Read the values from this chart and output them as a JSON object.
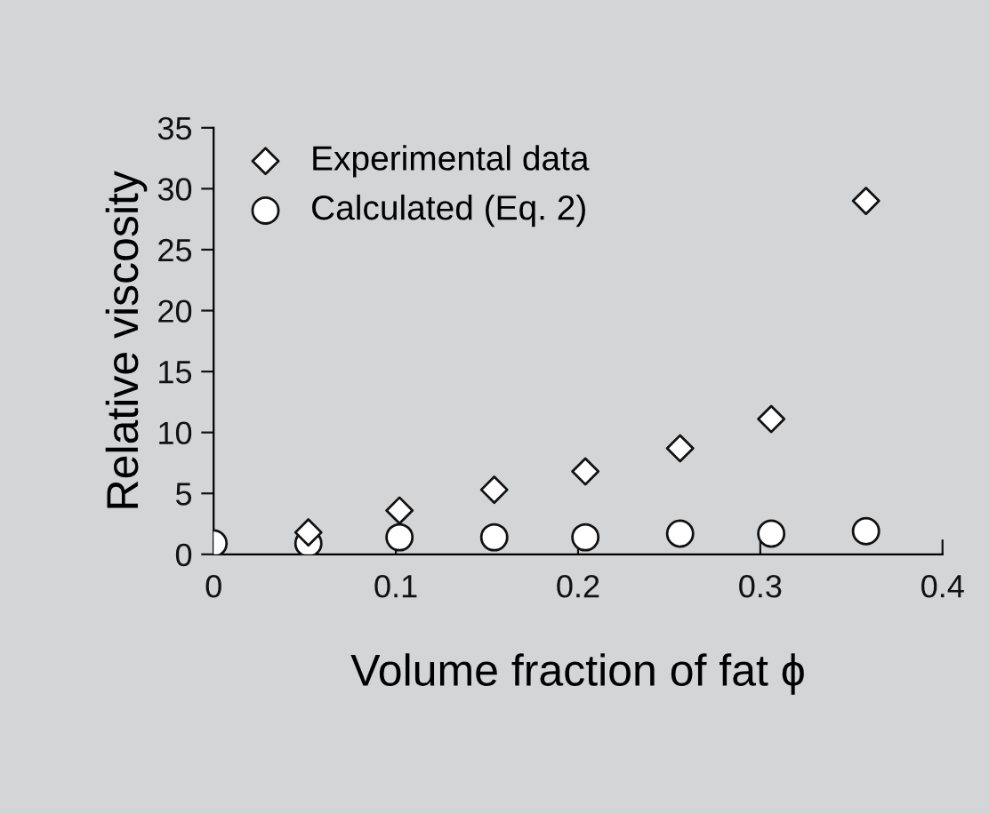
{
  "chart_data": {
    "type": "scatter",
    "xlabel": "Volume fraction of fat ϕ",
    "ylabel": "Relative viscosity",
    "x": [
      0,
      0.052,
      0.102,
      0.154,
      0.204,
      0.256,
      0.306,
      0.358
    ],
    "series": [
      {
        "name": "Experimental data",
        "color": "#ffffff",
        "marker": "diamond",
        "values": [
          null,
          1.8,
          3.6,
          5.3,
          6.8,
          8.7,
          11.1,
          29.0
        ]
      },
      {
        "name": "Calculated (Eq. 2)",
        "color": "#ffffff",
        "marker": "circle",
        "values": [
          0.9,
          0.9,
          1.4,
          1.4,
          1.4,
          1.7,
          1.7,
          1.9
        ]
      }
    ],
    "xlim": [
      0,
      0.4
    ],
    "xticks": [
      0,
      0.1,
      0.2,
      0.3,
      0.4
    ],
    "ylim": [
      0,
      35
    ],
    "yticks": [
      0,
      5,
      10,
      15,
      20,
      25,
      30,
      35
    ],
    "grid": false,
    "legend": "top left"
  }
}
